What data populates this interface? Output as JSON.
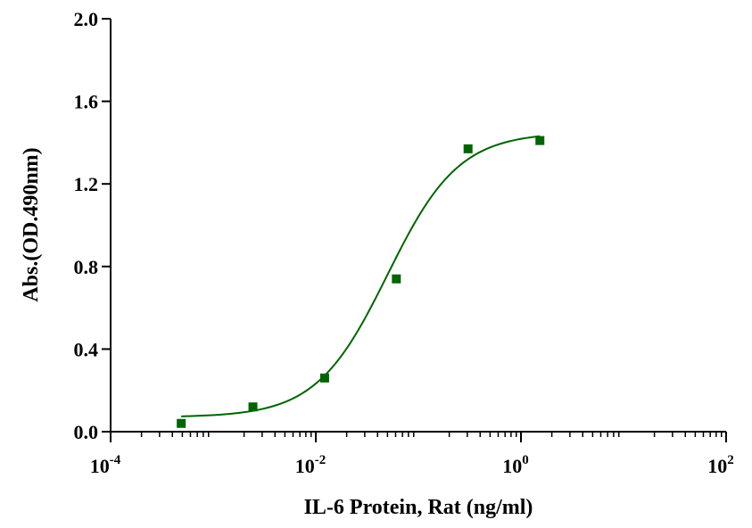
{
  "chart_data": {
    "type": "scatter",
    "xlabel": "IL-6 Protein, Rat  (ng/ml)",
    "ylabel": "Abs.(OD.490nm)",
    "x_scale": "log10",
    "xlim": [
      0.0001,
      100
    ],
    "ylim": [
      0,
      2.0
    ],
    "x_ticks": [
      {
        "value": 0.0001,
        "base": "10",
        "exp": "-4"
      },
      {
        "value": 0.01,
        "base": "10",
        "exp": "-2"
      },
      {
        "value": 1,
        "base": "10",
        "exp": "0"
      },
      {
        "value": 100,
        "base": "10",
        "exp": "2"
      }
    ],
    "y_ticks": [
      {
        "value": 0.0,
        "label": "0.0"
      },
      {
        "value": 0.4,
        "label": "0.4"
      },
      {
        "value": 0.8,
        "label": "0.8"
      },
      {
        "value": 1.2,
        "label": "1.2"
      },
      {
        "value": 1.6,
        "label": "1.6"
      },
      {
        "value": 2.0,
        "label": "2.0"
      }
    ],
    "grid": false,
    "legend": "none",
    "series": [
      {
        "marker": "square",
        "color": "#006400",
        "points": [
          {
            "x": 0.000488,
            "y": 0.04
          },
          {
            "x": 0.00244,
            "y": 0.12
          },
          {
            "x": 0.0122,
            "y": 0.26
          },
          {
            "x": 0.061,
            "y": 0.74
          },
          {
            "x": 0.305,
            "y": 1.37
          },
          {
            "x": 1.53,
            "y": 1.41
          }
        ]
      }
    ],
    "fit": {
      "type": "4PL",
      "color": "#006400",
      "bottom": 0.07,
      "top": 1.45,
      "ec50": 0.05,
      "hill": 1.25,
      "x_range": [
        0.000488,
        1.53
      ]
    }
  }
}
